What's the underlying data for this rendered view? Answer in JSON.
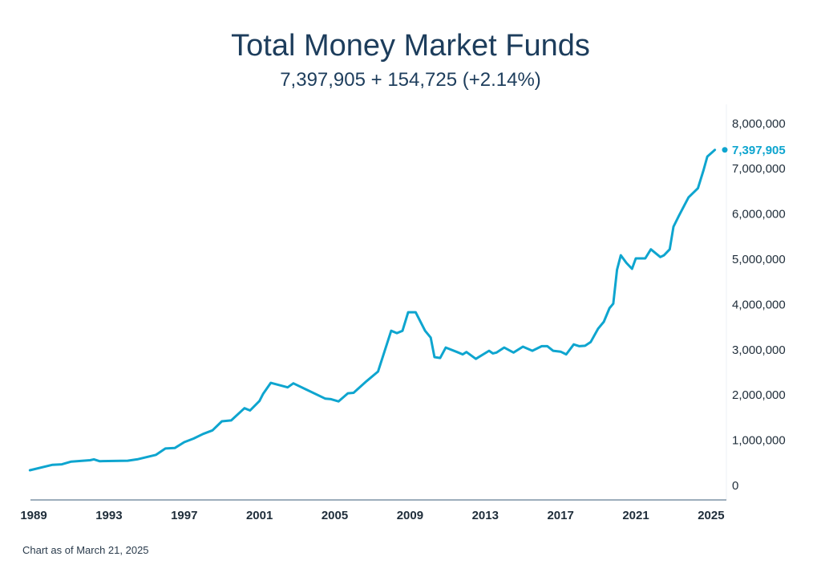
{
  "chart_data": {
    "type": "line",
    "title": "Total Money Market Funds",
    "subtitle": "7,397,905 + 154,725 (+2.14%)",
    "note": "Chart as of March 21, 2025",
    "xlabel": "",
    "ylabel": "",
    "xlim": [
      1989,
      2025.7
    ],
    "ylim": [
      0,
      8000000
    ],
    "x_ticks": [
      "1989",
      "1993",
      "1997",
      "2001",
      "2005",
      "2009",
      "2013",
      "2017",
      "2021",
      "2025"
    ],
    "y_ticks": [
      "0",
      "1,000,000",
      "2,000,000",
      "3,000,000",
      "4,000,000",
      "5,000,000",
      "6,000,000",
      "7,000,000",
      "8,000,000"
    ],
    "last_value_label": "7,397,905",
    "color": "#0ea5cf",
    "series": [
      {
        "name": "Total Money Market Funds",
        "x": [
          1988.8,
          1990,
          1990.5,
          1991,
          1992,
          1992.2,
          1992.5,
          1994,
          1994.5,
          1995.5,
          1996,
          1996.5,
          1997,
          1997.5,
          1998,
          1998.5,
          1999,
          1999.5,
          2000.2,
          2000.5,
          2001,
          2001.2,
          2001.6,
          2002.5,
          2002.8,
          2004.5,
          2004.8,
          2005.2,
          2005.7,
          2006,
          2006.7,
          2007.3,
          2008,
          2008.3,
          2008.6,
          2008.9,
          2009.3,
          2009.8,
          2010.1,
          2010.3,
          2010.6,
          2010.9,
          2011.5,
          2011.8,
          2012,
          2012.5,
          2013.2,
          2013.4,
          2013.6,
          2014,
          2014.5,
          2015,
          2015.5,
          2016,
          2016.3,
          2016.6,
          2017,
          2017.3,
          2017.7,
          2018,
          2018.3,
          2018.6,
          2019,
          2019.3,
          2019.6,
          2019.8,
          2020,
          2020.2,
          2020.5,
          2020.8,
          2021,
          2021.5,
          2021.8,
          2022.3,
          2022.5,
          2022.8,
          2023,
          2023.3,
          2023.8,
          2024.3,
          2024.6,
          2024.8,
          2025.2
        ],
        "values": [
          320000,
          440000,
          450000,
          510000,
          540000,
          560000,
          520000,
          530000,
          560000,
          660000,
          800000,
          810000,
          940000,
          1020000,
          1120000,
          1200000,
          1400000,
          1420000,
          1690000,
          1640000,
          1850000,
          2010000,
          2250000,
          2150000,
          2240000,
          1900000,
          1890000,
          1840000,
          2020000,
          2030000,
          2290000,
          2500000,
          3400000,
          3350000,
          3400000,
          3810000,
          3810000,
          3400000,
          3250000,
          2820000,
          2800000,
          3030000,
          2930000,
          2880000,
          2930000,
          2780000,
          2960000,
          2900000,
          2920000,
          3030000,
          2920000,
          3050000,
          2960000,
          3060000,
          3060000,
          2960000,
          2940000,
          2880000,
          3100000,
          3060000,
          3070000,
          3150000,
          3450000,
          3600000,
          3900000,
          4000000,
          4750000,
          5070000,
          4900000,
          4770000,
          5000000,
          5000000,
          5200000,
          5030000,
          5070000,
          5200000,
          5700000,
          5950000,
          6350000,
          6550000,
          6950000,
          7250000,
          7397905
        ]
      }
    ]
  }
}
